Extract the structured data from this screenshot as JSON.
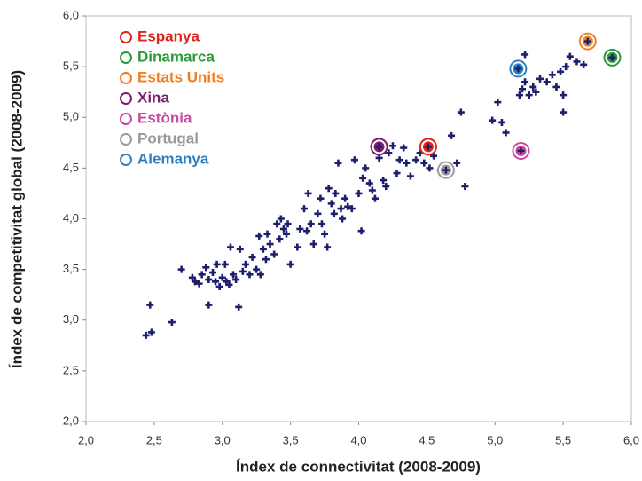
{
  "chart_data": {
    "type": "scatter",
    "xlabel": "Índex de connectivitat (2008-2009)",
    "ylabel": "Índex de competitivitat global (2008-2009)",
    "xlim": [
      2,
      6
    ],
    "ylim": [
      2,
      6
    ],
    "xticks": [
      {
        "value": 2,
        "label": "2,0"
      },
      {
        "value": 2.5,
        "label": "2,5"
      },
      {
        "value": 3,
        "label": "3,0"
      },
      {
        "value": 3.5,
        "label": "3,5"
      },
      {
        "value": 4,
        "label": "4,0"
      },
      {
        "value": 4.5,
        "label": "4,5"
      },
      {
        "value": 5,
        "label": "5,0"
      },
      {
        "value": 5.5,
        "label": "5,5"
      },
      {
        "value": 6,
        "label": "6,0"
      }
    ],
    "yticks": [
      {
        "value": 2,
        "label": "2,0"
      },
      {
        "value": 2.5,
        "label": "2,5"
      },
      {
        "value": 3,
        "label": "3,0"
      },
      {
        "value": 3.5,
        "label": "3,5"
      },
      {
        "value": 4,
        "label": "4,0"
      },
      {
        "value": 4.5,
        "label": "4,5"
      },
      {
        "value": 5,
        "label": "5,0"
      },
      {
        "value": 5.5,
        "label": "5,5"
      },
      {
        "value": 6,
        "label": "6,0"
      }
    ],
    "legend": "top-left",
    "color": "#1c1f6b",
    "x": [
      2.44,
      2.48,
      2.47,
      2.63,
      2.7,
      2.78,
      2.8,
      2.83,
      2.85,
      2.88,
      2.9,
      2.9,
      2.93,
      2.95,
      2.96,
      2.98,
      3.0,
      3.02,
      3.03,
      3.05,
      3.06,
      3.08,
      3.1,
      3.12,
      3.13,
      3.15,
      3.17,
      3.2,
      3.22,
      3.25,
      3.27,
      3.28,
      3.3,
      3.32,
      3.33,
      3.35,
      3.38,
      3.4,
      3.42,
      3.43,
      3.45,
      3.47,
      3.48,
      3.5,
      3.55,
      3.57,
      3.6,
      3.62,
      3.63,
      3.65,
      3.67,
      3.7,
      3.72,
      3.73,
      3.75,
      3.77,
      3.78,
      3.8,
      3.82,
      3.83,
      3.85,
      3.87,
      3.88,
      3.9,
      3.92,
      3.95,
      3.97,
      4.0,
      4.02,
      4.03,
      4.05,
      4.08,
      4.1,
      4.12,
      4.15,
      4.18,
      4.2,
      4.22,
      4.25,
      4.28,
      4.3,
      4.33,
      4.35,
      4.38,
      4.42,
      4.45,
      4.48,
      4.52,
      4.55,
      4.6,
      4.68,
      4.72,
      4.75,
      4.78,
      4.98,
      5.02,
      5.05,
      5.08,
      5.18,
      5.2,
      5.22,
      5.25,
      5.28,
      5.3,
      5.33,
      5.38,
      5.42,
      5.45,
      5.48,
      5.5,
      5.5,
      5.52,
      5.55,
      5.6,
      5.65,
      5.22
    ],
    "y": [
      2.85,
      2.88,
      3.15,
      2.98,
      3.5,
      3.42,
      3.38,
      3.36,
      3.45,
      3.52,
      3.15,
      3.4,
      3.47,
      3.38,
      3.55,
      3.33,
      3.42,
      3.55,
      3.38,
      3.35,
      3.72,
      3.45,
      3.4,
      3.13,
      3.7,
      3.48,
      3.55,
      3.45,
      3.62,
      3.5,
      3.83,
      3.45,
      3.7,
      3.6,
      3.85,
      3.75,
      3.65,
      3.95,
      3.8,
      4.0,
      3.9,
      3.85,
      3.95,
      3.55,
      3.72,
      3.9,
      4.1,
      3.88,
      4.25,
      3.95,
      3.75,
      4.05,
      4.2,
      3.95,
      3.85,
      3.72,
      4.3,
      4.15,
      4.05,
      4.25,
      4.55,
      4.1,
      4.0,
      4.2,
      4.12,
      4.1,
      4.58,
      4.25,
      3.88,
      4.4,
      4.5,
      4.35,
      4.28,
      4.2,
      4.6,
      4.38,
      4.32,
      4.65,
      4.72,
      4.45,
      4.58,
      4.7,
      4.55,
      4.42,
      4.58,
      4.65,
      4.55,
      4.5,
      4.62,
      4.48,
      4.82,
      4.55,
      5.05,
      4.32,
      4.97,
      5.15,
      4.95,
      4.85,
      5.22,
      5.28,
      5.35,
      5.22,
      5.3,
      5.25,
      5.38,
      5.35,
      5.42,
      5.3,
      5.45,
      5.05,
      5.22,
      5.5,
      5.6,
      5.55,
      5.52,
      5.62
    ],
    "highlights": [
      {
        "name": "Espanya",
        "color": "#e2231a",
        "x": 4.51,
        "y": 4.71
      },
      {
        "name": "Dinamarca",
        "color": "#2a9a3a",
        "x": 5.86,
        "y": 5.59
      },
      {
        "name": "Estats Units",
        "color": "#f07f22",
        "x": 5.68,
        "y": 5.75
      },
      {
        "name": "Xina",
        "color": "#7b1f6e",
        "x": 4.15,
        "y": 4.71
      },
      {
        "name": "Estònia",
        "color": "#c94aa3",
        "x": 5.19,
        "y": 4.67
      },
      {
        "name": "Portugal",
        "color": "#9a9a9a",
        "x": 4.64,
        "y": 4.48
      },
      {
        "name": "Alemanya",
        "color": "#2f7fc1",
        "x": 5.17,
        "y": 5.48
      }
    ]
  }
}
